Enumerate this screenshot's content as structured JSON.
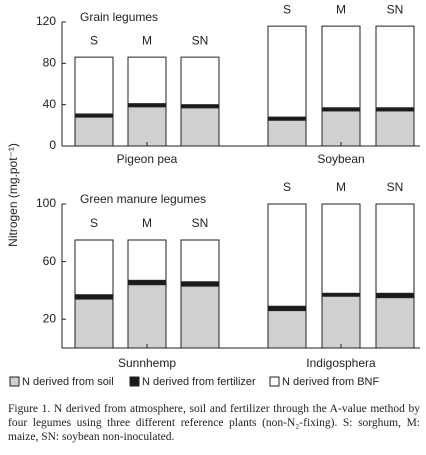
{
  "chart_data": [
    {
      "type": "bar",
      "stacked": true,
      "title": "Grain legumes",
      "ylabel": "Nitrogen (mg.pot⁻¹)",
      "groups": [
        "Pigeon pea",
        "Soybean"
      ],
      "categories": [
        "S",
        "M",
        "SN",
        "S",
        "M",
        "SN"
      ],
      "ylim": [
        0,
        120
      ],
      "yticks": [
        0,
        40,
        80,
        120
      ],
      "series": [
        {
          "name": "N derived from soil",
          "color": "#d0d0d0",
          "values": [
            28,
            38,
            37,
            25,
            34,
            34
          ]
        },
        {
          "name": "N derived from fertilizer",
          "color": "#1a1a1a",
          "values": [
            3,
            3,
            3,
            3,
            3,
            3
          ]
        },
        {
          "name": "N derived from BNF",
          "color": "#ffffff",
          "values": [
            55,
            45,
            46,
            88,
            79,
            79
          ]
        }
      ]
    },
    {
      "type": "bar",
      "stacked": true,
      "title": "Green manure legumes",
      "groups": [
        "Sunnhemp",
        "Indigosphera"
      ],
      "categories": [
        "S",
        "M",
        "SN",
        "S",
        "M",
        "SN"
      ],
      "ylim": [
        0,
        100
      ],
      "yticks": [
        20,
        60,
        100
      ],
      "series": [
        {
          "color": "#d0d0d0",
          "values": [
            34,
            44,
            43,
            26,
            36,
            35
          ]
        },
        {
          "color": "#1a1a1a",
          "values": [
            3,
            3,
            3,
            3,
            2,
            3
          ]
        },
        {
          "color": "#ffffff",
          "values": [
            38,
            28,
            29,
            71,
            62,
            62
          ]
        }
      ]
    }
  ],
  "caption": "Figure 1. N derived from atmosphere, soil and fertilizer through the A-value method by four legumes using three different reference plants (non-N₂-fixing). S: sorghum, M: maize, SN: soybean non-inoculated."
}
